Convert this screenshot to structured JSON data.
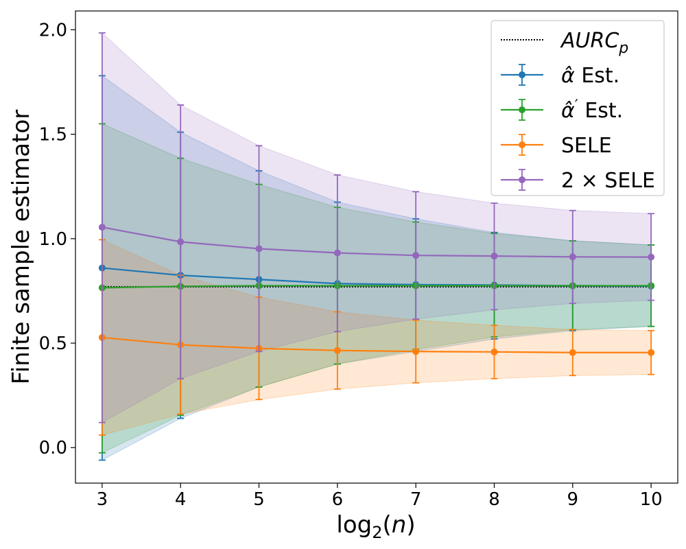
{
  "chart_data": {
    "type": "line",
    "title": "",
    "xlabel": "log₂(n)",
    "ylabel": "Finite sample estimator",
    "x": [
      3,
      4,
      5,
      6,
      7,
      8,
      9,
      10
    ],
    "xlim": [
      2.66,
      10.34
    ],
    "ylim": [
      -0.17,
      2.09
    ],
    "xticks": [
      3,
      4,
      5,
      6,
      7,
      8,
      9,
      10
    ],
    "yticks": [
      0.0,
      0.5,
      1.0,
      1.5,
      2.0
    ],
    "ytick_labels": [
      "0.0",
      "0.5",
      "1.0",
      "1.5",
      "2.0"
    ],
    "grid": false,
    "legend_position": "top-right",
    "reference_line": {
      "name": "AURC_p",
      "label_main": "AURC",
      "label_sub": "p",
      "value": 0.77,
      "color": "#000000"
    },
    "series": [
      {
        "name": "α̂ Est.",
        "label_main": "α̂",
        "label_prime": "",
        "label_rest": " Est.",
        "color": "#1f77b4",
        "values": [
          0.86,
          0.825,
          0.805,
          0.785,
          0.78,
          0.778,
          0.775,
          0.773
        ],
        "lower": [
          -0.06,
          0.14,
          0.29,
          0.4,
          0.46,
          0.52,
          0.56,
          0.58
        ],
        "upper": [
          1.78,
          1.51,
          1.325,
          1.175,
          1.095,
          1.03,
          0.99,
          0.97
        ]
      },
      {
        "name": "α̂′ Est.",
        "label_main": "α̂",
        "label_prime": "′",
        "label_rest": " Est.",
        "color": "#2ca02c",
        "values": [
          0.765,
          0.772,
          0.775,
          0.775,
          0.775,
          0.775,
          0.775,
          0.775
        ],
        "lower": [
          -0.025,
          0.155,
          0.29,
          0.4,
          0.47,
          0.53,
          0.565,
          0.58
        ],
        "upper": [
          1.55,
          1.385,
          1.26,
          1.15,
          1.08,
          1.025,
          0.99,
          0.97
        ]
      },
      {
        "name": "SELE",
        "label_main": "SELE",
        "label_prime": "",
        "label_rest": "",
        "color": "#ff7f0e",
        "values": [
          0.527,
          0.492,
          0.475,
          0.465,
          0.46,
          0.458,
          0.455,
          0.455
        ],
        "lower": [
          0.06,
          0.16,
          0.23,
          0.28,
          0.31,
          0.33,
          0.345,
          0.35
        ],
        "upper": [
          0.995,
          0.825,
          0.72,
          0.65,
          0.61,
          0.585,
          0.565,
          0.56
        ]
      },
      {
        "name": "2 × SELE",
        "label_main": "2 × SELE",
        "label_prime": "",
        "label_rest": "",
        "color": "#9467bd",
        "values": [
          1.055,
          0.985,
          0.952,
          0.932,
          0.92,
          0.917,
          0.913,
          0.912
        ],
        "lower": [
          0.12,
          0.33,
          0.46,
          0.555,
          0.615,
          0.66,
          0.69,
          0.705
        ],
        "upper": [
          1.985,
          1.64,
          1.445,
          1.305,
          1.225,
          1.17,
          1.135,
          1.12
        ]
      }
    ]
  }
}
